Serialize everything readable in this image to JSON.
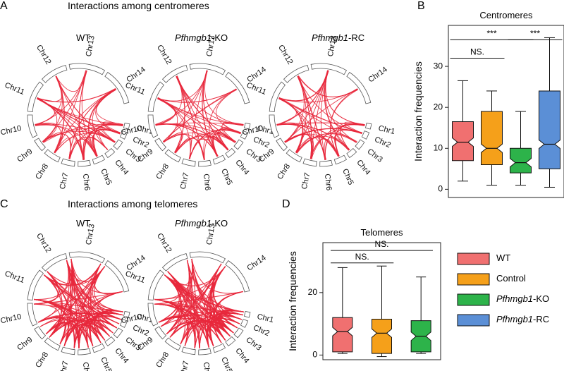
{
  "panels": {
    "A": {
      "letter": "A",
      "title": "Interactions among centromeres",
      "circos": [
        {
          "label_plain": "WT",
          "label_italic": "",
          "label_suffix": ""
        },
        {
          "label_plain": "",
          "label_italic": "Pfhmgb1",
          "label_suffix": "-KO"
        },
        {
          "label_plain": "",
          "label_italic": "Pfhmgb1",
          "label_suffix": "-RC"
        }
      ]
    },
    "C": {
      "letter": "C",
      "title": "Interactions among telomeres",
      "circos": [
        {
          "label_plain": "WT",
          "label_italic": "",
          "label_suffix": ""
        },
        {
          "label_plain": "",
          "label_italic": "Pfhmgb1",
          "label_suffix": "-KO"
        }
      ]
    },
    "B": {
      "letter": "B"
    },
    "D": {
      "letter": "D"
    }
  },
  "chromosomes": [
    "Chr1",
    "Chr2",
    "Chr3",
    "Chr4",
    "Chr5",
    "Chr6",
    "Chr7",
    "Chr8",
    "Chr9",
    "Chr10",
    "Chr11",
    "Chr12",
    "Chr13",
    "Chr14"
  ],
  "colors": {
    "arc": "#e8283c",
    "wt": "#f07070",
    "control": "#f5a01a",
    "ko": "#2db34a",
    "rc": "#5b8fd6"
  },
  "legend": [
    {
      "key": "wt",
      "plain": "WT",
      "italic": "",
      "suffix": ""
    },
    {
      "key": "control",
      "plain": "Control",
      "italic": "",
      "suffix": ""
    },
    {
      "key": "ko",
      "plain": "",
      "italic": "Pfhmgb1",
      "suffix": "-KO"
    },
    {
      "key": "rc",
      "plain": "",
      "italic": "Pfhmgb1",
      "suffix": "-RC"
    }
  ],
  "chart_data": [
    {
      "type": "boxplot",
      "title": "Centromeres",
      "ylabel": "Interaction frequencies",
      "ylim": [
        -2,
        40
      ],
      "yticks": [
        0,
        10,
        20,
        30
      ],
      "groups": [
        {
          "key": "wt",
          "whisker_low": 2,
          "q1": 7,
          "median": 11.5,
          "q3": 16.5,
          "whisker_high": 26.5
        },
        {
          "key": "control",
          "whisker_low": 1,
          "q1": 6,
          "median": 10,
          "q3": 19,
          "whisker_high": 24
        },
        {
          "key": "ko",
          "whisker_low": 1,
          "q1": 4,
          "median": 6.5,
          "q3": 10,
          "whisker_high": 19
        },
        {
          "key": "rc",
          "whisker_low": 0.5,
          "q1": 5,
          "median": 11,
          "q3": 24,
          "whisker_high": 37
        }
      ],
      "significance": [
        {
          "from": 0,
          "to": 1,
          "label": "NS.",
          "y": 32
        },
        {
          "from": 0,
          "to": 2,
          "label": "***",
          "y": 36.5
        },
        {
          "from": 2,
          "to": 3,
          "label": "***",
          "y": 36.5
        }
      ]
    },
    {
      "type": "boxplot",
      "title": "Telomeres",
      "ylabel": "Interaction frequencies",
      "ylim": [
        -1.5,
        36
      ],
      "yticks": [
        0,
        20
      ],
      "groups": [
        {
          "key": "wt",
          "whisker_low": 0.5,
          "q1": 1,
          "median": 7.5,
          "q3": 12,
          "whisker_high": 28
        },
        {
          "key": "control",
          "whisker_low": -0.5,
          "q1": 0.5,
          "median": 7,
          "q3": 11.5,
          "whisker_high": 28.5
        },
        {
          "key": "ko",
          "whisker_low": 0.5,
          "q1": 1,
          "median": 6,
          "q3": 11,
          "whisker_high": 25
        }
      ],
      "significance": [
        {
          "from": 0,
          "to": 1,
          "label": "NS.",
          "y": 29.5
        },
        {
          "from": 0,
          "to": 2,
          "label": "NS.",
          "y": 33.5
        }
      ]
    }
  ]
}
